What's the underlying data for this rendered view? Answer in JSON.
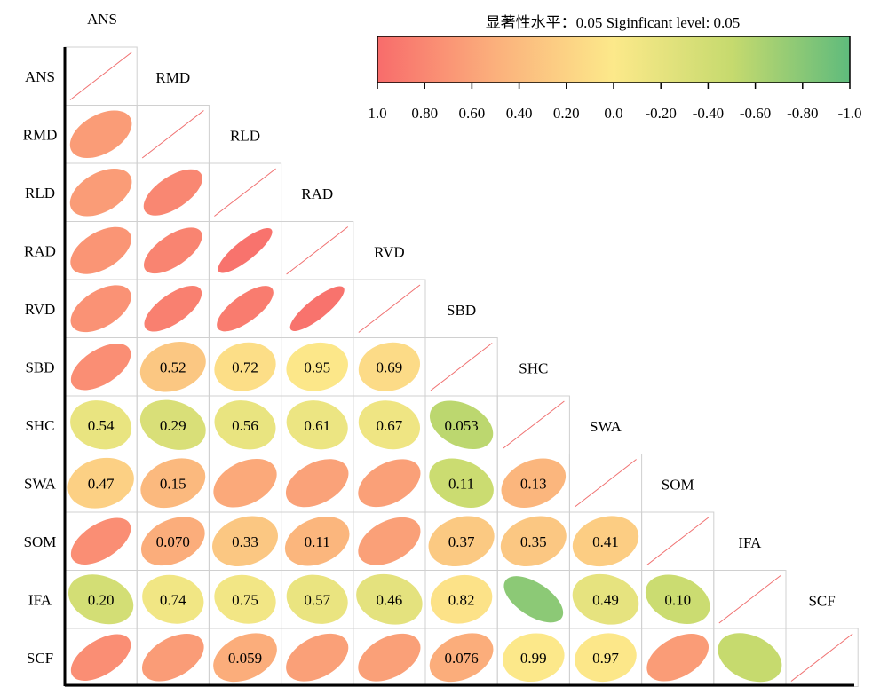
{
  "chart_data": {
    "type": "heatmap",
    "variables": [
      "ANS",
      "RMD",
      "RLD",
      "RAD",
      "RVD",
      "SBD",
      "SHC",
      "SWA",
      "SOM",
      "IFA",
      "SCF"
    ],
    "legend": {
      "title": "显著性水平：0.05   Siginficant level: 0.05",
      "ticks": [
        "1.0",
        "0.80",
        "0.60",
        "0.40",
        "0.20",
        "0.0",
        "-0.20",
        "-0.40",
        "-0.60",
        "-0.80",
        "-1.0"
      ],
      "range": [
        1.0,
        -1.0
      ],
      "colors": {
        "positive": "#f86c6b",
        "mid_positive": "#fbb07c",
        "zero": "#fce98a",
        "mid_negative": "#c6da6e",
        "negative": "#5fbb7c"
      }
    },
    "cells": [
      {
        "row": "RMD",
        "col": "ANS",
        "r": 0.65,
        "label": ""
      },
      {
        "row": "RLD",
        "col": "ANS",
        "r": 0.65,
        "label": ""
      },
      {
        "row": "RLD",
        "col": "RMD",
        "r": 0.8,
        "label": ""
      },
      {
        "row": "RAD",
        "col": "ANS",
        "r": 0.7,
        "label": ""
      },
      {
        "row": "RAD",
        "col": "RMD",
        "r": 0.82,
        "label": ""
      },
      {
        "row": "RAD",
        "col": "RLD",
        "r": 0.95,
        "label": ""
      },
      {
        "row": "RVD",
        "col": "ANS",
        "r": 0.72,
        "label": ""
      },
      {
        "row": "RVD",
        "col": "RMD",
        "r": 0.85,
        "label": ""
      },
      {
        "row": "RVD",
        "col": "RLD",
        "r": 0.88,
        "label": ""
      },
      {
        "row": "RVD",
        "col": "RAD",
        "r": 0.95,
        "label": ""
      },
      {
        "row": "SBD",
        "col": "ANS",
        "r": 0.75,
        "label": ""
      },
      {
        "row": "SBD",
        "col": "RMD",
        "r": 0.3,
        "label": "0.52"
      },
      {
        "row": "SBD",
        "col": "RLD",
        "r": 0.1,
        "label": "0.72"
      },
      {
        "row": "SBD",
        "col": "RAD",
        "r": 0.02,
        "label": "0.95"
      },
      {
        "row": "SBD",
        "col": "RVD",
        "r": 0.12,
        "label": "0.69"
      },
      {
        "row": "SHC",
        "col": "ANS",
        "r": -0.18,
        "label": "0.54"
      },
      {
        "row": "SHC",
        "col": "RMD",
        "r": -0.32,
        "label": "0.29"
      },
      {
        "row": "SHC",
        "col": "RLD",
        "r": -0.18,
        "label": "0.56"
      },
      {
        "row": "SHC",
        "col": "RAD",
        "r": -0.15,
        "label": "0.61"
      },
      {
        "row": "SHC",
        "col": "RVD",
        "r": -0.12,
        "label": "0.67"
      },
      {
        "row": "SHC",
        "col": "SBD",
        "r": -0.55,
        "label": "0.053"
      },
      {
        "row": "SWA",
        "col": "ANS",
        "r": 0.22,
        "label": "0.47"
      },
      {
        "row": "SWA",
        "col": "RMD",
        "r": 0.42,
        "label": "0.15"
      },
      {
        "row": "SWA",
        "col": "RLD",
        "r": 0.55,
        "label": ""
      },
      {
        "row": "SWA",
        "col": "RAD",
        "r": 0.6,
        "label": ""
      },
      {
        "row": "SWA",
        "col": "RVD",
        "r": 0.62,
        "label": ""
      },
      {
        "row": "SWA",
        "col": "SBD",
        "r": -0.45,
        "label": "0.11"
      },
      {
        "row": "SWA",
        "col": "SHC",
        "r": 0.45,
        "label": "0.13"
      },
      {
        "row": "SOM",
        "col": "ANS",
        "r": 0.75,
        "label": ""
      },
      {
        "row": "SOM",
        "col": "RMD",
        "r": 0.52,
        "label": "0.070"
      },
      {
        "row": "SOM",
        "col": "RLD",
        "r": 0.3,
        "label": "0.33"
      },
      {
        "row": "SOM",
        "col": "RAD",
        "r": 0.45,
        "label": "0.11"
      },
      {
        "row": "SOM",
        "col": "RVD",
        "r": 0.62,
        "label": ""
      },
      {
        "row": "SOM",
        "col": "SBD",
        "r": 0.28,
        "label": "0.37"
      },
      {
        "row": "SOM",
        "col": "SHC",
        "r": 0.3,
        "label": "0.35"
      },
      {
        "row": "SOM",
        "col": "SWA",
        "r": 0.25,
        "label": "0.41"
      },
      {
        "row": "IFA",
        "col": "ANS",
        "r": -0.38,
        "label": "0.20"
      },
      {
        "row": "IFA",
        "col": "RMD",
        "r": -0.1,
        "label": "0.74"
      },
      {
        "row": "IFA",
        "col": "RLD",
        "r": -0.09,
        "label": "0.75"
      },
      {
        "row": "IFA",
        "col": "RAD",
        "r": -0.17,
        "label": "0.57"
      },
      {
        "row": "IFA",
        "col": "RVD",
        "r": -0.22,
        "label": "0.46"
      },
      {
        "row": "IFA",
        "col": "SBD",
        "r": 0.06,
        "label": "0.82"
      },
      {
        "row": "IFA",
        "col": "SHC",
        "r": -0.78,
        "label": ""
      },
      {
        "row": "IFA",
        "col": "SWA",
        "r": -0.2,
        "label": "0.49"
      },
      {
        "row": "IFA",
        "col": "SOM",
        "r": -0.45,
        "label": "0.10"
      },
      {
        "row": "SCF",
        "col": "ANS",
        "r": 0.75,
        "label": ""
      },
      {
        "row": "SCF",
        "col": "RMD",
        "r": 0.65,
        "label": ""
      },
      {
        "row": "SCF",
        "col": "RLD",
        "r": 0.52,
        "label": "0.059"
      },
      {
        "row": "SCF",
        "col": "RAD",
        "r": 0.62,
        "label": ""
      },
      {
        "row": "SCF",
        "col": "RVD",
        "r": 0.62,
        "label": ""
      },
      {
        "row": "SCF",
        "col": "SBD",
        "r": 0.52,
        "label": "0.076"
      },
      {
        "row": "SCF",
        "col": "SHC",
        "r": 0.01,
        "label": "0.99"
      },
      {
        "row": "SCF",
        "col": "SWA",
        "r": 0.02,
        "label": "0.97"
      },
      {
        "row": "SCF",
        "col": "SOM",
        "r": 0.65,
        "label": ""
      },
      {
        "row": "SCF",
        "col": "IFA",
        "r": -0.5,
        "label": ""
      }
    ]
  }
}
